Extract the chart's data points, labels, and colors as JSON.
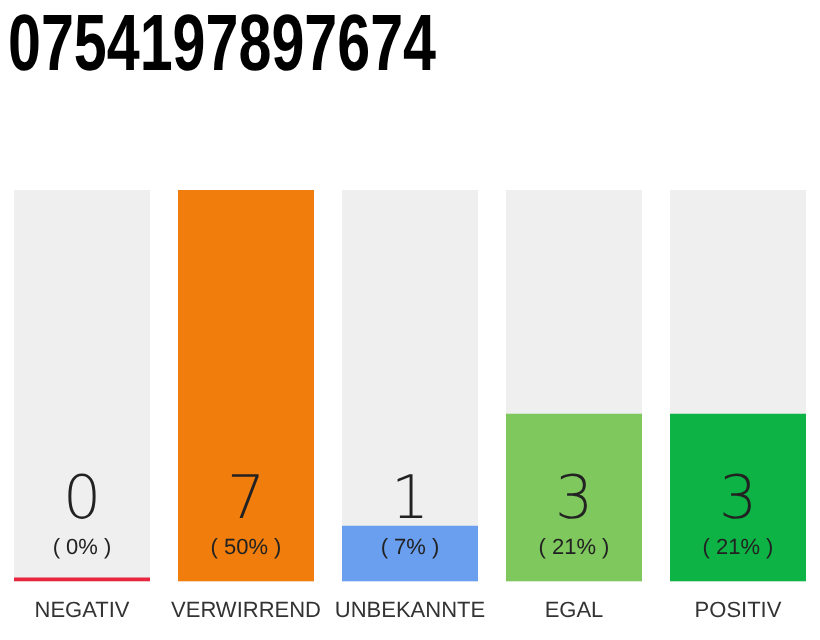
{
  "chart_data": {
    "type": "bar",
    "title": "0754197897674",
    "categories": [
      "NEGATIV",
      "VERWIRREND",
      "UNBEKANNTE",
      "EGAL",
      "POSITIV"
    ],
    "values": [
      0,
      7,
      1,
      3,
      3
    ],
    "colors": [
      "#e8263f",
      "#f07d0c",
      "#6a9fef",
      "#7ec85e",
      "#0db345"
    ],
    "value_labels": [
      "0\n( 0% )",
      "7\n( 50% )",
      "1\n( 7% )",
      "3\n( 21% )",
      "3\n( 21% )"
    ],
    "grid": false,
    "legend": false,
    "tick_labels": "x"
  }
}
